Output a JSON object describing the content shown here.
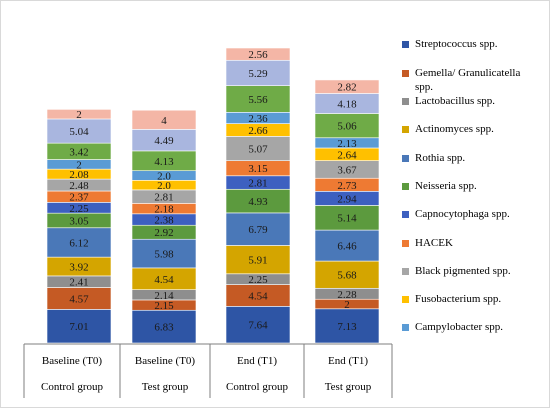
{
  "chart_data": {
    "type": "bar",
    "stacked": true,
    "categories": [
      {
        "label": "Baseline (T0)",
        "group": "Control group"
      },
      {
        "label": "Baseline (T0)",
        "group": "Test group"
      },
      {
        "label": "End (T1)",
        "group": "Control group"
      },
      {
        "label": "End (T1)",
        "group": "Test group"
      }
    ],
    "series": [
      {
        "name": "Streptococcus spp.",
        "color": "#2e55a5",
        "values": [
          7.01,
          6.83,
          7.64,
          7.13
        ]
      },
      {
        "name": "Gemella/ Granulicatella spp.",
        "color": "#c55a24",
        "values": [
          4.57,
          2.15,
          4.54,
          2
        ]
      },
      {
        "name": "Lactobacillus spp.",
        "color": "#8e8e8e",
        "values": [
          2.41,
          2.14,
          2.25,
          2.28
        ]
      },
      {
        "name": "Actinomyces spp.",
        "color": "#d4a500",
        "values": [
          3.92,
          4.54,
          5.91,
          5.68
        ]
      },
      {
        "name": "Rothia spp.",
        "color": "#4a78b8",
        "values": [
          6.12,
          5.98,
          6.79,
          6.46
        ]
      },
      {
        "name": "Neisseria spp.",
        "color": "#5c9a3e",
        "values": [
          3.05,
          2.92,
          4.93,
          5.14
        ]
      },
      {
        "name": "Capnocytophaga spp.",
        "color": "#3d60c0",
        "values": [
          2.25,
          2.38,
          2.81,
          2.94
        ]
      },
      {
        "name": "HACEK",
        "color": "#ee7a33",
        "values": [
          2.37,
          2.18,
          3.15,
          2.73
        ]
      },
      {
        "name": "Black pigmented spp.",
        "color": "#a6a6a6",
        "values": [
          2.48,
          2.81,
          5.07,
          3.67
        ]
      },
      {
        "name": "Fusobacterium spp.",
        "color": "#ffc000",
        "values": [
          2.08,
          2.0,
          2.66,
          2.64
        ]
      },
      {
        "name": "Campylobacter spp.",
        "color": "#5a9bd5",
        "values": [
          2,
          2.0,
          2.36,
          2.13
        ]
      },
      {
        "name": "",
        "color": "#6fab47",
        "values": [
          3.42,
          4.13,
          5.56,
          5.06
        ]
      },
      {
        "name": "",
        "color": "#a9b6df",
        "values": [
          5.04,
          4.49,
          5.29,
          4.18
        ]
      },
      {
        "name": "",
        "color": "#f4b6a6",
        "values": [
          2,
          4,
          2.56,
          2.82
        ]
      }
    ],
    "value_labels": [
      [
        "7.01",
        "4.57",
        "2.41",
        "3.92",
        "6.12",
        "3.05",
        "2.25",
        "2.37",
        "2.48",
        "2.08",
        "2",
        "3.42",
        "5.04",
        "2"
      ],
      [
        "6.83",
        "2.15",
        "2.14",
        "4.54",
        "5.98",
        "2.92",
        "2.38",
        "2.18",
        "2.81",
        "2.0",
        "2.0",
        "4.13",
        "4.49",
        "4"
      ],
      [
        "7.64",
        "4.54",
        "2.25",
        "5.91",
        "6.79",
        "4.93",
        "2.81",
        "3.15",
        "5.07",
        "2.66",
        "2.36",
        "5.56",
        "5.29",
        "2.56"
      ],
      [
        "7.13",
        "2",
        "2.28",
        "5.68",
        "6.46",
        "5.14",
        "2.94",
        "2.73",
        "3.67",
        "2.64",
        "2.13",
        "5.06",
        "4.18",
        "2.82"
      ]
    ],
    "legend_position": "right",
    "grid": false,
    "title": "",
    "xlabel": "",
    "ylabel": ""
  }
}
